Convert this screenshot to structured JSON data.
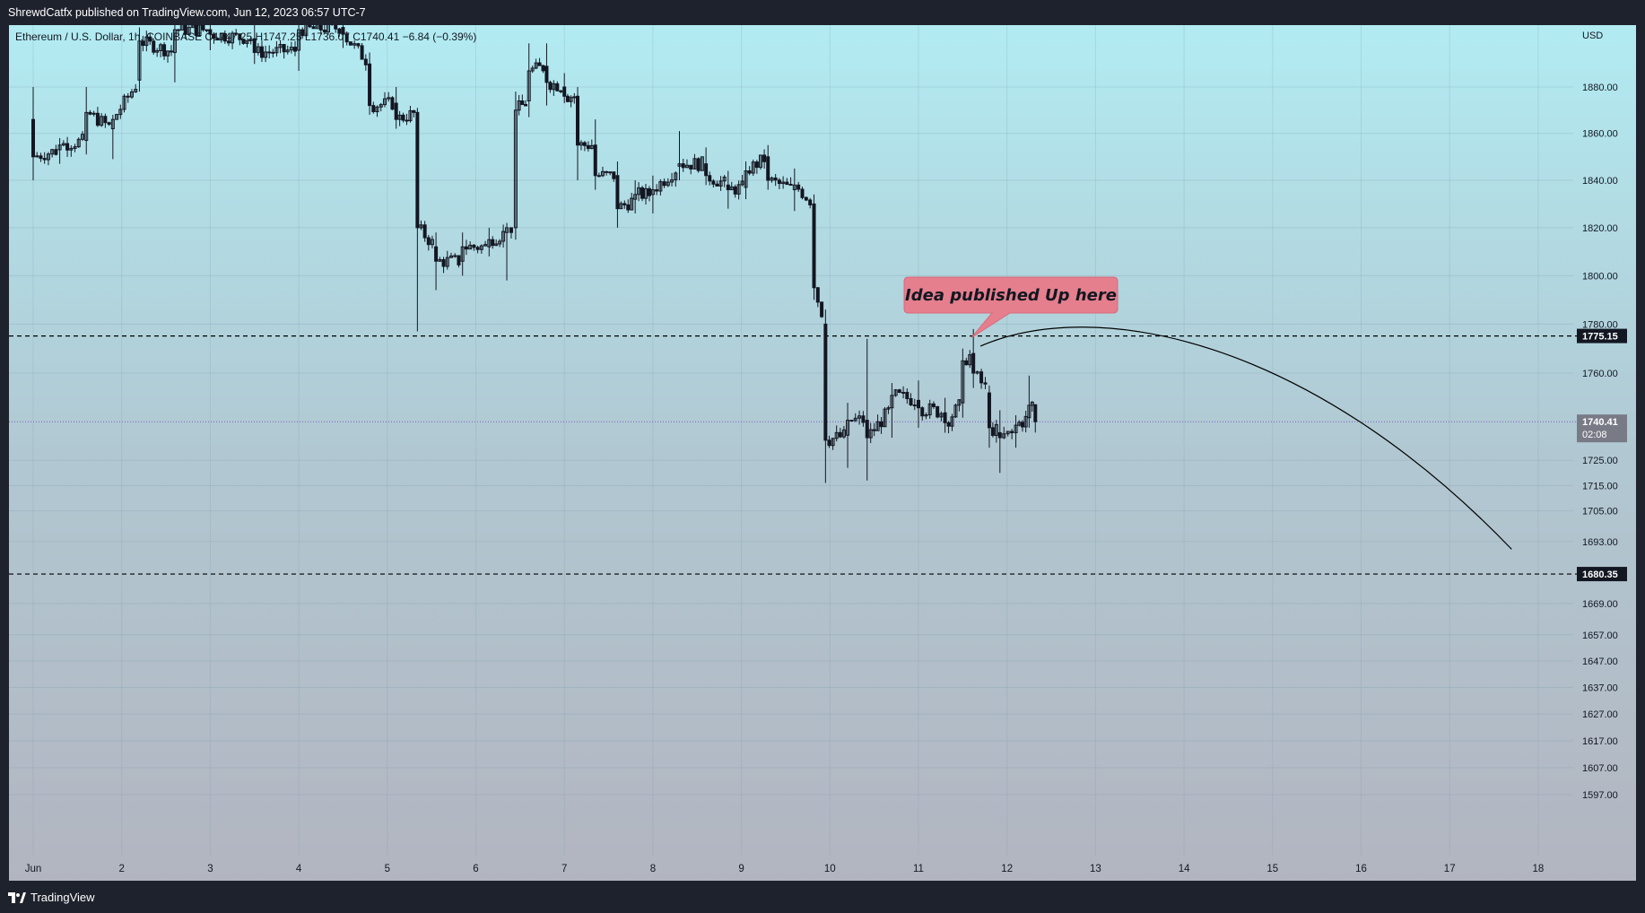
{
  "header": {
    "published": "ShrewdCatfx published on TradingView.com, Jun 12, 2023 06:57 UTC-7"
  },
  "symbol_line": "Ethereum / U.S. Dollar, 1h, COINBASE  O1747.25  H1747.25  L1736.07  C1740.41  −6.84 (−0.39%)",
  "footer": {
    "brand": "TradingView"
  },
  "colors": {
    "background_top": "#b2ebf2",
    "background_bottom": "#b2b5c0",
    "candle": "#131722",
    "dashed_line": "#000000",
    "price_line": "#7e57c2",
    "bubble_fill": "#e57f8d",
    "frame": "#1e222d"
  },
  "chart_data": {
    "type": "candlestick",
    "title": "",
    "xlabel": "",
    "ylabel": "",
    "currency_label": "USD",
    "x_ticks": [
      "Jun",
      "2",
      "3",
      "4",
      "5",
      "6",
      "7",
      "8",
      "9",
      "10",
      "11",
      "12",
      "13",
      "14",
      "15",
      "16",
      "17",
      "18"
    ],
    "y_ticks": [
      1880.0,
      1860.0,
      1840.0,
      1820.0,
      1800.0,
      1780.0,
      1760.0,
      1725.0,
      1715.0,
      1705.0,
      1693.0,
      1669.0,
      1657.0,
      1647.0,
      1637.0,
      1627.0,
      1617.0,
      1607.0,
      1597.0
    ],
    "y_scale": "log",
    "y_range": [
      1588,
      1906
    ],
    "x_range_days": [
      0.85,
      18.5
    ],
    "grid": true,
    "legend": "none",
    "horizontal_lines": [
      {
        "price": 1775.15,
        "label": "1775.15",
        "style": "dashed"
      },
      {
        "price": 1680.35,
        "label": "1680.35",
        "style": "dashed"
      }
    ],
    "current_price": {
      "price": 1740.41,
      "label": "1740.41",
      "countdown": "02:08",
      "style": "dotted"
    },
    "annotation": {
      "text": "Idea published Up here",
      "anchor_day": 11.6,
      "anchor_price": 1776
    },
    "projection_curve": [
      {
        "day": 11.7,
        "price": 1771
      },
      {
        "day": 13.2,
        "price": 1781
      },
      {
        "day": 15.5,
        "price": 1760
      },
      {
        "day": 17.7,
        "price": 1690
      }
    ],
    "candles_sampled": [
      {
        "day": 1.0,
        "o": 1866,
        "h": 1880,
        "l": 1840,
        "c": 1850
      },
      {
        "day": 1.3,
        "o": 1853,
        "h": 1858,
        "l": 1847,
        "c": 1855
      },
      {
        "day": 1.6,
        "o": 1857,
        "h": 1880,
        "l": 1851,
        "c": 1869
      },
      {
        "day": 1.9,
        "o": 1862,
        "h": 1868,
        "l": 1849,
        "c": 1866
      },
      {
        "day": 2.2,
        "o": 1883,
        "h": 1906,
        "l": 1878,
        "c": 1900
      },
      {
        "day": 2.6,
        "o": 1895,
        "h": 1910,
        "l": 1882,
        "c": 1905
      },
      {
        "day": 3.0,
        "o": 1905,
        "h": 1912,
        "l": 1896,
        "c": 1903
      },
      {
        "day": 3.5,
        "o": 1901,
        "h": 1910,
        "l": 1890,
        "c": 1895
      },
      {
        "day": 4.0,
        "o": 1896,
        "h": 1910,
        "l": 1887,
        "c": 1905
      },
      {
        "day": 4.5,
        "o": 1906,
        "h": 1913,
        "l": 1897,
        "c": 1903
      },
      {
        "day": 4.8,
        "o": 1890,
        "h": 1895,
        "l": 1868,
        "c": 1872
      },
      {
        "day": 5.1,
        "o": 1873,
        "h": 1880,
        "l": 1862,
        "c": 1866
      },
      {
        "day": 5.34,
        "o": 1869,
        "h": 1871,
        "l": 1777,
        "c": 1820
      },
      {
        "day": 5.55,
        "o": 1812,
        "h": 1818,
        "l": 1794,
        "c": 1806
      },
      {
        "day": 5.85,
        "o": 1806,
        "h": 1818,
        "l": 1800,
        "c": 1812
      },
      {
        "day": 6.15,
        "o": 1812,
        "h": 1820,
        "l": 1808,
        "c": 1815
      },
      {
        "day": 6.35,
        "o": 1818,
        "h": 1822,
        "l": 1798,
        "c": 1820
      },
      {
        "day": 6.45,
        "o": 1820,
        "h": 1878,
        "l": 1815,
        "c": 1870
      },
      {
        "day": 6.6,
        "o": 1874,
        "h": 1899,
        "l": 1867,
        "c": 1887
      },
      {
        "day": 6.8,
        "o": 1889,
        "h": 1899,
        "l": 1872,
        "c": 1882
      },
      {
        "day": 7.0,
        "o": 1880,
        "h": 1886,
        "l": 1873,
        "c": 1876
      },
      {
        "day": 7.15,
        "o": 1876,
        "h": 1880,
        "l": 1840,
        "c": 1855
      },
      {
        "day": 7.35,
        "o": 1855,
        "h": 1866,
        "l": 1836,
        "c": 1842
      },
      {
        "day": 7.6,
        "o": 1842,
        "h": 1848,
        "l": 1820,
        "c": 1828
      },
      {
        "day": 7.8,
        "o": 1832,
        "h": 1840,
        "l": 1826,
        "c": 1834
      },
      {
        "day": 8.0,
        "o": 1834,
        "h": 1842,
        "l": 1826,
        "c": 1836
      },
      {
        "day": 8.3,
        "o": 1846,
        "h": 1861,
        "l": 1840,
        "c": 1847
      },
      {
        "day": 8.6,
        "o": 1847,
        "h": 1854,
        "l": 1838,
        "c": 1842
      },
      {
        "day": 8.85,
        "o": 1838,
        "h": 1844,
        "l": 1828,
        "c": 1836
      },
      {
        "day": 9.05,
        "o": 1837,
        "h": 1848,
        "l": 1832,
        "c": 1844
      },
      {
        "day": 9.3,
        "o": 1850,
        "h": 1855,
        "l": 1836,
        "c": 1840
      },
      {
        "day": 9.6,
        "o": 1836,
        "h": 1845,
        "l": 1827,
        "c": 1838
      },
      {
        "day": 9.82,
        "o": 1830,
        "h": 1834,
        "l": 1790,
        "c": 1795
      },
      {
        "day": 9.95,
        "o": 1780,
        "h": 1786,
        "l": 1716,
        "c": 1733
      },
      {
        "day": 10.2,
        "o": 1735,
        "h": 1748,
        "l": 1722,
        "c": 1741
      },
      {
        "day": 10.42,
        "o": 1741,
        "h": 1774,
        "l": 1717,
        "c": 1734
      },
      {
        "day": 10.7,
        "o": 1746,
        "h": 1756,
        "l": 1734,
        "c": 1751
      },
      {
        "day": 11.0,
        "o": 1749,
        "h": 1757,
        "l": 1738,
        "c": 1746
      },
      {
        "day": 11.3,
        "o": 1744,
        "h": 1750,
        "l": 1736,
        "c": 1740
      },
      {
        "day": 11.5,
        "o": 1748,
        "h": 1770,
        "l": 1742,
        "c": 1765
      },
      {
        "day": 11.62,
        "o": 1768,
        "h": 1778,
        "l": 1754,
        "c": 1760
      },
      {
        "day": 11.8,
        "o": 1752,
        "h": 1755,
        "l": 1730,
        "c": 1738
      },
      {
        "day": 11.92,
        "o": 1736,
        "h": 1745,
        "l": 1720,
        "c": 1734
      },
      {
        "day": 12.1,
        "o": 1736,
        "h": 1743,
        "l": 1730,
        "c": 1739
      },
      {
        "day": 12.25,
        "o": 1742,
        "h": 1759,
        "l": 1738,
        "c": 1747
      },
      {
        "day": 12.32,
        "o": 1747.25,
        "h": 1747.25,
        "l": 1736.07,
        "c": 1740.41
      }
    ]
  }
}
